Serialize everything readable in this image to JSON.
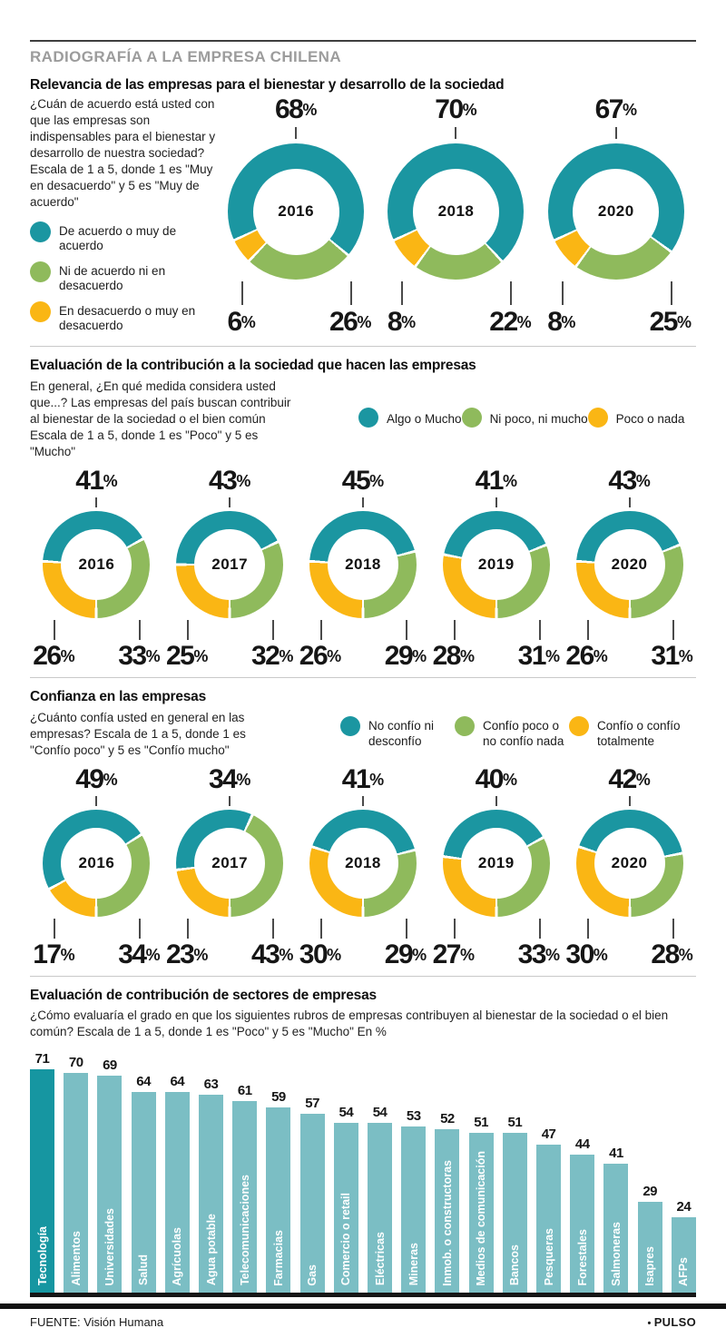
{
  "header": {
    "kicker": "RADIOGRAFÍA A LA EMPRESA CHILENA"
  },
  "colors": {
    "teal": "#1b96a1",
    "green": "#8fba5c",
    "yellow": "#fab614",
    "bar_light": "#7bbec4",
    "bar_highlight": "#1696a1",
    "kicker_gray": "#9c9c9c",
    "text_black": "#1a1a1a"
  },
  "sections": {
    "relevancia": {
      "title": "Relevancia de las empresas para el bienestar y desarrollo de la sociedad",
      "intro": "¿Cuán de acuerdo está usted con que las empresas son indispensables para el bienestar y desarrollo de nuestra sociedad? Escala de 1 a 5, donde 1 es \"Muy en desacuerdo\" y 5 es \"Muy de acuerdo\""
    },
    "contribucion": {
      "title": "Evaluación de la contribución a la sociedad que hacen las empresas",
      "intro": "En general, ¿En qué medida considera usted que...? Las empresas del país buscan contribuir al bienestar de la sociedad o el bien común Escala de 1 a 5, donde 1 es \"Poco\" y 5 es \"Mucho\""
    },
    "confianza": {
      "title": "Confianza en las empresas",
      "intro": "¿Cuánto confía usted en general en las empresas? Escala de 1 a 5, donde 1 es \"Confío poco\" y 5 es \"Confío mucho\""
    },
    "sectores": {
      "title": "Evaluación de contribución de sectores de empresas",
      "intro": "¿Cómo evaluaría el grado en que los siguientes rubros de empresas contribuyen al bienestar de la sociedad o el bien común? Escala de 1 a 5, donde 1 es \"Poco\" y 5 es \"Mucho\" En %"
    }
  },
  "footer": {
    "source": "FUENTE: Visión Humana",
    "bullet": "•",
    "brand": "PULSO"
  },
  "chart_data": [
    {
      "type": "pie",
      "variant": "donut-row",
      "size": "big",
      "title": "Relevancia de las empresas para el bienestar y desarrollo de la sociedad",
      "unit": "%",
      "years": [
        "2016",
        "2018",
        "2020"
      ],
      "series": [
        {
          "name": "De acuerdo o muy de acuerdo",
          "color_key": "teal",
          "values": [
            68,
            70,
            67
          ]
        },
        {
          "name": "Ni de acuerdo ni en desacuerdo",
          "color_key": "green",
          "values": [
            26,
            22,
            25
          ]
        },
        {
          "name": "En desacuerdo o muy en desacuerdo",
          "color_key": "yellow",
          "values": [
            6,
            8,
            8
          ]
        }
      ],
      "layout": {
        "legend_position": "left",
        "start_mode": "fixed",
        "start_angle": 245,
        "gap_deg": 2.2
      }
    },
    {
      "type": "pie",
      "variant": "donut-row",
      "size": "small",
      "title": "Evaluación de la contribución a la sociedad que hacen las empresas",
      "unit": "%",
      "years": [
        "2016",
        "2017",
        "2018",
        "2019",
        "2020"
      ],
      "series": [
        {
          "name": "Algo o Mucho",
          "color_key": "teal",
          "values": [
            41,
            43,
            45,
            41,
            43
          ]
        },
        {
          "name": "Ni poco, ni mucho",
          "color_key": "green",
          "values": [
            33,
            32,
            29,
            31,
            31
          ]
        },
        {
          "name": "Poco o nada",
          "color_key": "yellow",
          "values": [
            26,
            25,
            26,
            28,
            26
          ]
        }
      ],
      "layout": {
        "legend_position": "top-right",
        "start_mode": "auto",
        "gap_deg": 3
      }
    },
    {
      "type": "pie",
      "variant": "donut-row",
      "size": "small",
      "title": "Confianza en las empresas",
      "unit": "%",
      "years": [
        "2016",
        "2017",
        "2018",
        "2019",
        "2020"
      ],
      "series": [
        {
          "name": "No confío ni desconfío",
          "color_key": "teal",
          "values": [
            49,
            34,
            41,
            40,
            42
          ]
        },
        {
          "name": "Confío poco o no confío nada",
          "color_key": "green",
          "values": [
            34,
            43,
            29,
            33,
            28
          ]
        },
        {
          "name": "Confío o confío totalmente",
          "color_key": "yellow",
          "values": [
            17,
            23,
            30,
            27,
            30
          ]
        }
      ],
      "layout": {
        "legend_position": "top-right",
        "start_mode": "auto",
        "gap_deg": 3
      }
    },
    {
      "type": "bar",
      "title": "Evaluación de contribución de sectores de empresas",
      "xlabel": "",
      "ylabel": "",
      "unit": "%",
      "ylim": [
        0,
        75
      ],
      "grid": false,
      "highlight_index": 0,
      "categories": [
        "Tecnología",
        "Alimentos",
        "Universidades",
        "Salud",
        "Agrícuolas",
        "Agua potable",
        "Telecomunicaciones",
        "Farmacias",
        "Gas",
        "Comercio o retail",
        "Eléctricas",
        "Mineras",
        "Inmob. o constructoras",
        "Medios de comunicación",
        "Bancos",
        "Pesqueras",
        "Forestales",
        "Salmoneras",
        "Isapres",
        "AFPs"
      ],
      "values": [
        71,
        70,
        69,
        64,
        64,
        63,
        61,
        59,
        57,
        54,
        54,
        53,
        52,
        51,
        51,
        47,
        44,
        41,
        29,
        24
      ]
    }
  ]
}
